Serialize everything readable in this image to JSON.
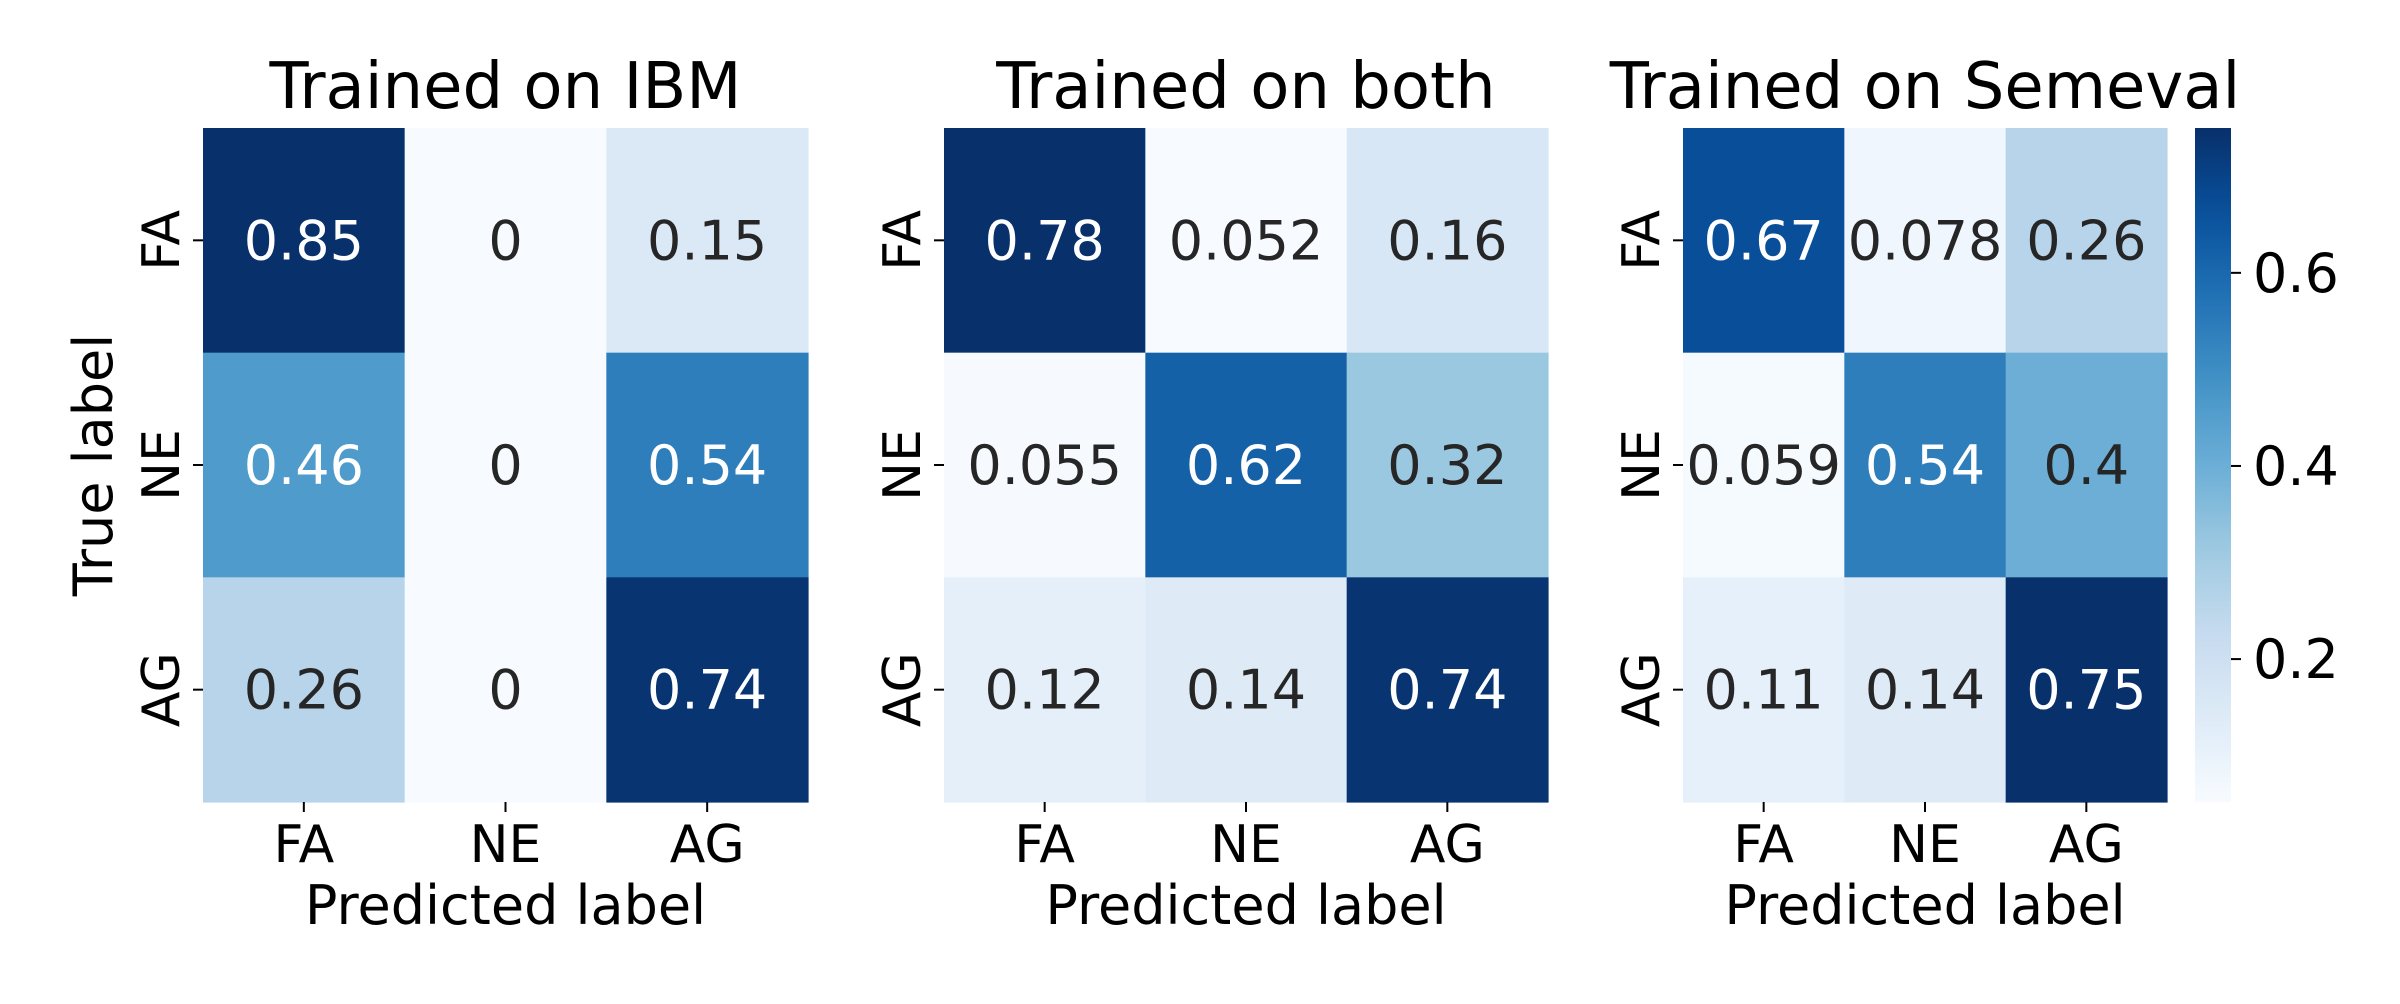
{
  "chart_data": [
    {
      "type": "heatmap",
      "title": "Trained on IBM",
      "xlabel": "Predicted label",
      "ylabel": "True label",
      "x_categories": [
        "FA",
        "NE",
        "AG"
      ],
      "y_categories": [
        "FA",
        "NE",
        "AG"
      ],
      "values": [
        [
          0.85,
          0,
          0.15
        ],
        [
          0.46,
          0,
          0.54
        ],
        [
          0.26,
          0,
          0.74
        ]
      ],
      "labels": [
        [
          "0.85",
          "0",
          "0.15"
        ],
        [
          "0.46",
          "0",
          "0.54"
        ],
        [
          "0.26",
          "0",
          "0.74"
        ]
      ]
    },
    {
      "type": "heatmap",
      "title": "Trained on both",
      "xlabel": "Predicted label",
      "ylabel": "",
      "x_categories": [
        "FA",
        "NE",
        "AG"
      ],
      "y_categories": [
        "FA",
        "NE",
        "AG"
      ],
      "values": [
        [
          0.78,
          0.052,
          0.16
        ],
        [
          0.055,
          0.62,
          0.32
        ],
        [
          0.12,
          0.14,
          0.74
        ]
      ],
      "labels": [
        [
          "0.78",
          "0.052",
          "0.16"
        ],
        [
          "0.055",
          "0.62",
          "0.32"
        ],
        [
          "0.12",
          "0.14",
          "0.74"
        ]
      ]
    },
    {
      "type": "heatmap",
      "title": "Trained on Semeval",
      "xlabel": "Predicted label",
      "ylabel": "",
      "x_categories": [
        "FA",
        "NE",
        "AG"
      ],
      "y_categories": [
        "FA",
        "NE",
        "AG"
      ],
      "values": [
        [
          0.67,
          0.078,
          0.26
        ],
        [
          0.059,
          0.54,
          0.4
        ],
        [
          0.11,
          0.14,
          0.75
        ]
      ],
      "labels": [
        [
          "0.67",
          "0.078",
          "0.26"
        ],
        [
          "0.059",
          "0.54",
          "0.4"
        ],
        [
          "0.11",
          "0.14",
          "0.75"
        ]
      ]
    }
  ],
  "colorbar": {
    "colormap": "Blues",
    "range": [
      0.052,
      0.75
    ],
    "ticks": [
      0.2,
      0.4,
      0.6
    ],
    "tick_labels": [
      "0.2",
      "0.4",
      "0.6"
    ]
  },
  "colors": {
    "dark_text": "#262626",
    "light_text": "#ffffff",
    "axis": "#000000"
  }
}
